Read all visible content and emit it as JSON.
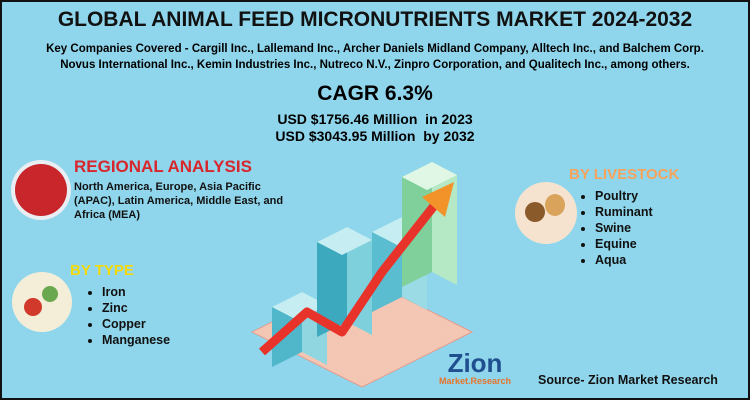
{
  "title": "GLOBAL ANIMAL FEED MICRONUTRIENTS MARKET 2024-2032",
  "companies": [
    "Key Companies Covered - Cargill Inc., Lallemand Inc., Archer Daniels Midland Company, Alltech Inc., and Balchem Corp.",
    "Novus International Inc., Kemin Industries Inc., Nutreco N.V., Zinpro Corporation, and Qualitech Inc., among others."
  ],
  "cagr": "CAGR 6.3%",
  "market_size": [
    "USD $1756.46 Million  in 2023",
    "USD $3043.95 Million  by 2032"
  ],
  "regional": {
    "heading": "REGIONAL ANALYSIS",
    "text": "North America, Europe, Asia Pacific (APAC), Latin America, Middle East, and Africa (MEA)"
  },
  "livestock": {
    "heading": "BY LIVESTOCK",
    "items": [
      "Poultry",
      "Ruminant",
      "Swine",
      "Equine",
      "Aqua"
    ]
  },
  "type": {
    "heading": "BY TYPE",
    "items": [
      "Iron",
      "Zinc",
      "Copper",
      "Manganese"
    ]
  },
  "logo": {
    "name": "Zion",
    "tagline": "Market.Research"
  },
  "source": "Source- Zion Market Research"
}
